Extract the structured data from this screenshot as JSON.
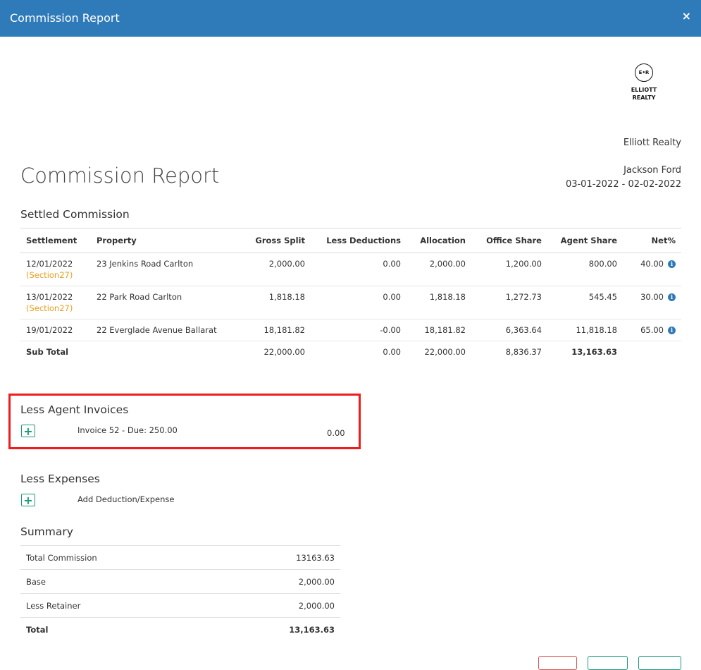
{
  "modal": {
    "title": "Commission Report",
    "close_icon": "×"
  },
  "logo": {
    "monogram": "E•R",
    "line1": "ELLIOTT",
    "line2": "REALTY"
  },
  "company_name": "Elliott Realty",
  "agent_name": "Jackson Ford",
  "date_range": "03-01-2022 - 02-02-2022",
  "report_title": "Commission Report",
  "settled": {
    "title": "Settled Commission",
    "headers": [
      "Settlement",
      "Property",
      "Gross Split",
      "Less Deductions",
      "Allocation",
      "Office Share",
      "Agent Share",
      "Net%"
    ],
    "rows": [
      {
        "date": "12/01/2022",
        "tag": "(Section27)",
        "property": "23 Jenkins Road Carlton",
        "gross": "2,000.00",
        "deductions": "0.00",
        "allocation": "2,000.00",
        "office": "1,200.00",
        "agent": "800.00",
        "net": "40.00"
      },
      {
        "date": "13/01/2022",
        "tag": "(Section27)",
        "property": "22 Park Road Carlton",
        "gross": "1,818.18",
        "deductions": "0.00",
        "allocation": "1,818.18",
        "office": "1,272.73",
        "agent": "545.45",
        "net": "30.00"
      },
      {
        "date": "19/01/2022",
        "tag": "",
        "property": "22 Everglade Avenue Ballarat",
        "gross": "18,181.82",
        "deductions": "-0.00",
        "allocation": "18,181.82",
        "office": "6,363.64",
        "agent": "11,818.18",
        "net": "65.00"
      }
    ],
    "subtotal": {
      "label": "Sub Total",
      "gross": "22,000.00",
      "deductions": "0.00",
      "allocation": "22,000.00",
      "office": "8,836.37",
      "agent": "13,163.63"
    }
  },
  "agent_invoices": {
    "title": "Less Agent Invoices",
    "item_label": "Invoice 52 - Due: 250.00",
    "item_value": "0.00"
  },
  "expenses": {
    "title": "Less Expenses",
    "add_label": "Add Deduction/Expense"
  },
  "summary": {
    "title": "Summary",
    "rows": [
      {
        "label": "Total Commission",
        "value": "13163.63"
      },
      {
        "label": "Base",
        "value": "2,000.00"
      },
      {
        "label": "Less Retainer",
        "value": "2,000.00"
      },
      {
        "label": "Total",
        "value": "13,163.63"
      }
    ]
  },
  "colors": {
    "header_bg": "#2f7ab8",
    "accent_green": "#1a9a7a",
    "section_tag": "#e8a020",
    "highlight_box": "#ee1c1c"
  }
}
